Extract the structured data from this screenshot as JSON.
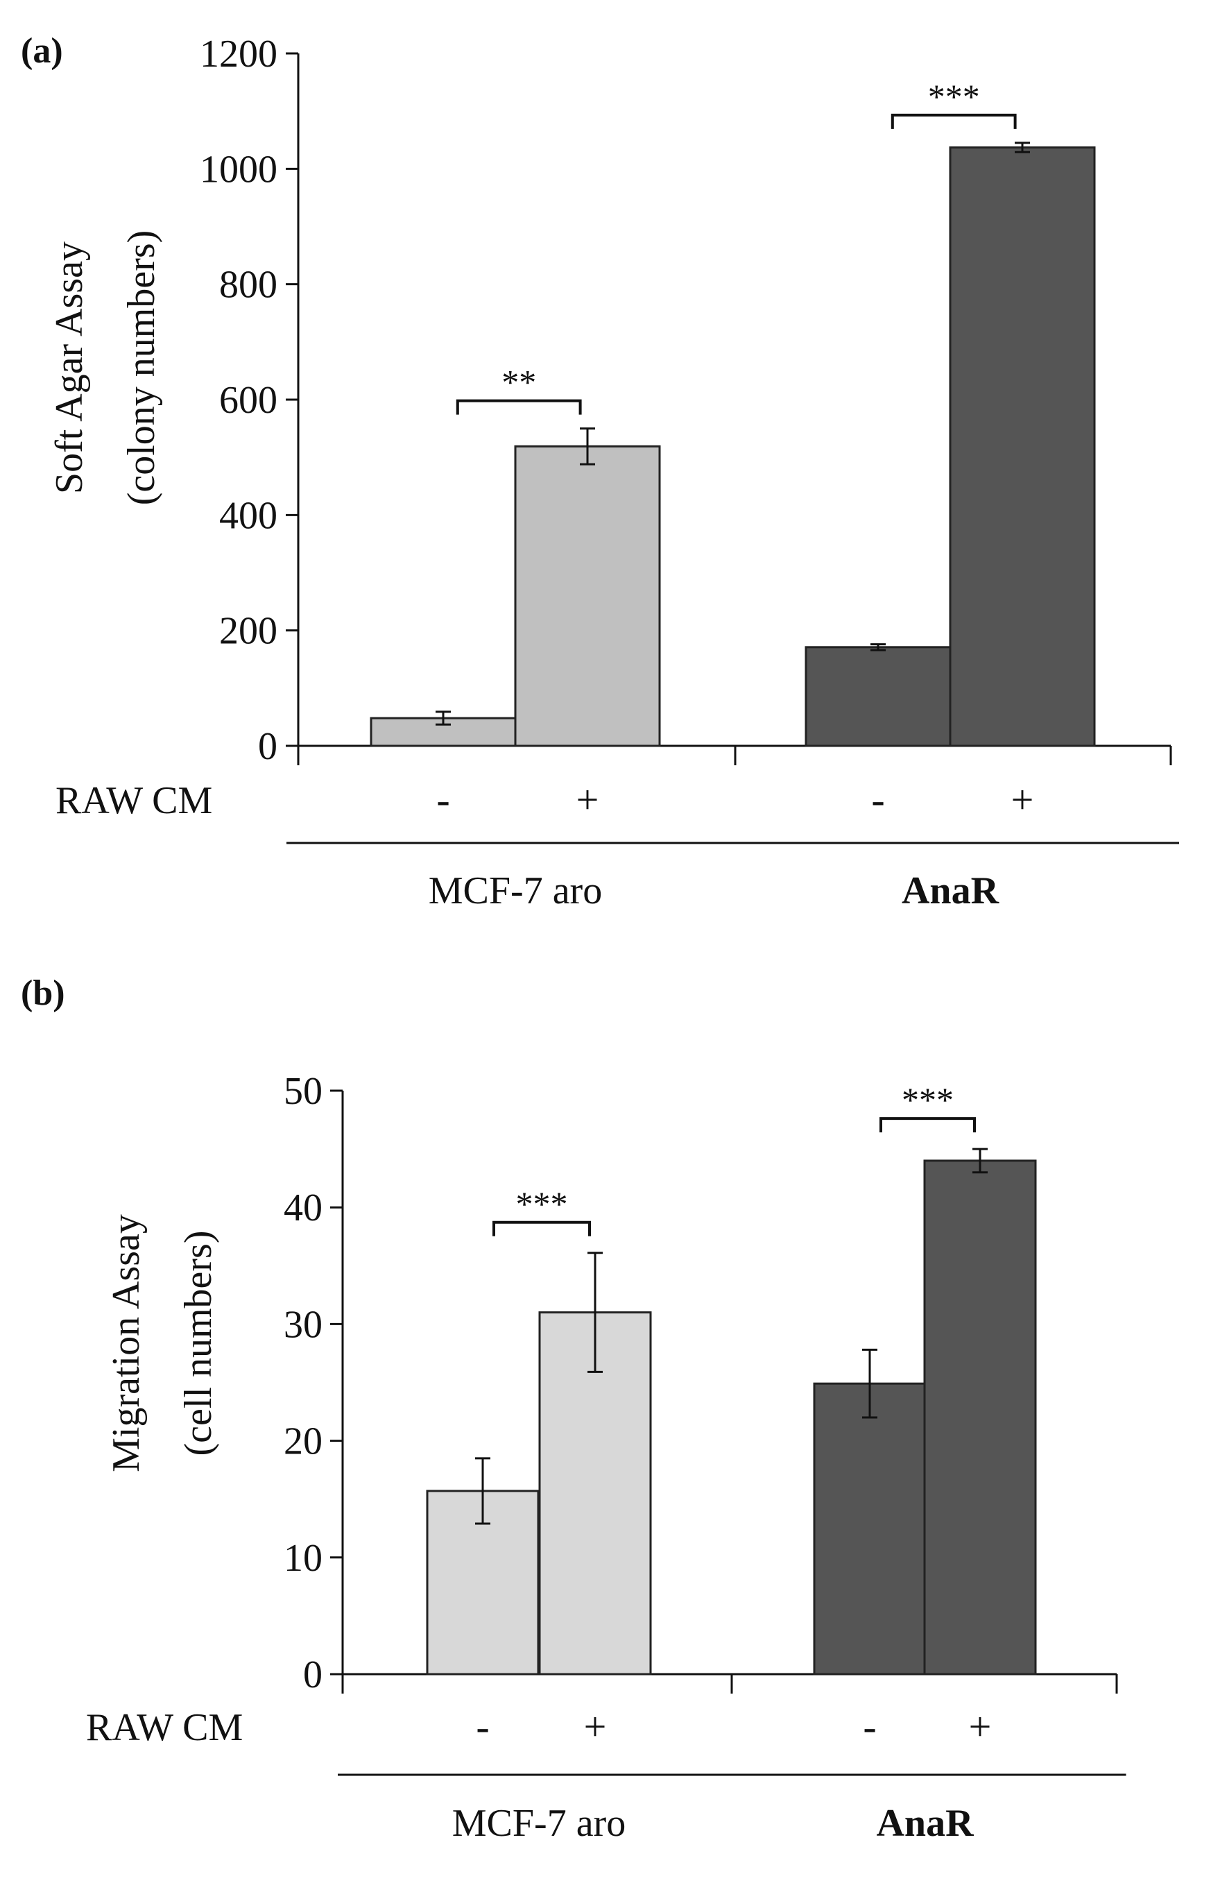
{
  "chart_data": [
    {
      "panel_label": "(a)",
      "type": "bar",
      "ylabel_line1": "Soft Agar Assay",
      "ylabel_line2": "(colony numbers)",
      "ylim": [
        0,
        1200
      ],
      "yticks": [
        "0",
        "200",
        "400",
        "600",
        "800",
        "1000",
        "1200"
      ],
      "treatment_label": "RAW CM",
      "groups": [
        {
          "name": "MCF-7 aro",
          "bold": false,
          "color": "#c0c0c0",
          "bars": [
            {
              "treatment": "-",
              "value": 48,
              "error": 11
            },
            {
              "treatment": "+",
              "value": 519,
              "error": 31
            }
          ],
          "significance": "**"
        },
        {
          "name": "AnaR",
          "bold": true,
          "color": "#555555",
          "bars": [
            {
              "treatment": "-",
              "value": 171,
              "error": 5
            },
            {
              "treatment": "+",
              "value": 1037,
              "error": 8
            }
          ],
          "significance": "***"
        }
      ]
    },
    {
      "panel_label": "(b)",
      "type": "bar",
      "ylabel_line1": "Migration Assay",
      "ylabel_line2": "(cell numbers)",
      "ylim": [
        0,
        50
      ],
      "yticks": [
        "0",
        "10",
        "20",
        "30",
        "40",
        "50"
      ],
      "treatment_label": "RAW CM",
      "groups": [
        {
          "name": "MCF-7 aro",
          "bold": false,
          "color": "#d8d8d8",
          "bars": [
            {
              "treatment": "-",
              "value": 15.7,
              "error": 2.8
            },
            {
              "treatment": "+",
              "value": 31.0,
              "error": 5.1
            }
          ],
          "significance": "***"
        },
        {
          "name": "AnaR",
          "bold": true,
          "color": "#555555",
          "bars": [
            {
              "treatment": "-",
              "value": 24.9,
              "error": 2.9
            },
            {
              "treatment": "+",
              "value": 44.0,
              "error": 1.0
            }
          ],
          "significance": "***"
        }
      ]
    }
  ]
}
